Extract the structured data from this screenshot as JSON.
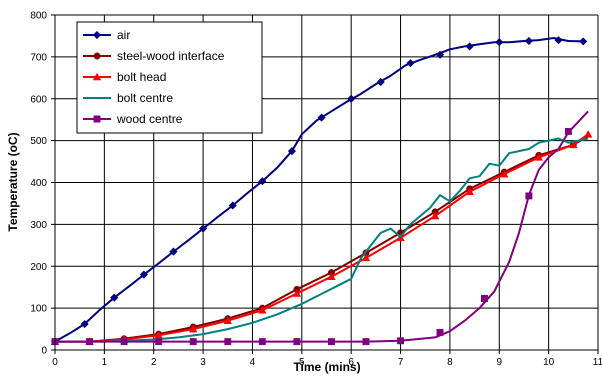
{
  "chart_data": {
    "type": "line",
    "title": "",
    "xlabel": "Time (mins)",
    "ylabel": "Temperature (oC)",
    "xlim": [
      0,
      11
    ],
    "ylim": [
      0,
      800
    ],
    "x_ticks": [
      0,
      1,
      2,
      3,
      4,
      5,
      6,
      7,
      8,
      9,
      10,
      11
    ],
    "x_tick_labels": [
      "0",
      "1",
      "2",
      "3",
      "4",
      "5",
      "6",
      "7",
      "8",
      "9",
      "10",
      "11"
    ],
    "y_ticks": [
      0,
      100,
      200,
      300,
      400,
      500,
      600,
      700,
      800
    ],
    "y_tick_labels": [
      "0",
      "100",
      "200",
      "300",
      "400",
      "500",
      "600",
      "700",
      "800"
    ],
    "grid": true,
    "legend_position": "top-left",
    "series": [
      {
        "name": "air",
        "color": "#000080",
        "marker": "diamond",
        "x": [
          0,
          0.3,
          0.6,
          0.9,
          1.2,
          1.5,
          1.8,
          2.1,
          2.4,
          2.7,
          3.0,
          3.3,
          3.6,
          3.9,
          4.2,
          4.5,
          4.8,
          5.0,
          5.3,
          5.6,
          5.9,
          6.2,
          6.5,
          6.8,
          7.1,
          7.4,
          7.7,
          8.0,
          8.3,
          8.6,
          8.9,
          9.2,
          9.5,
          9.8,
          10.1,
          10.4,
          10.7
        ],
        "y": [
          20,
          40,
          62,
          95,
          125,
          152,
          180,
          207,
          235,
          262,
          290,
          318,
          345,
          375,
          403,
          435,
          475,
          515,
          548,
          570,
          592,
          612,
          635,
          655,
          680,
          693,
          705,
          718,
          725,
          730,
          735,
          735,
          738,
          740,
          745,
          738,
          737
        ],
        "markers_x": [
          0,
          0.6,
          1.2,
          1.8,
          2.4,
          3.0,
          3.6,
          4.2,
          4.8,
          5.4,
          6.0,
          6.6,
          7.2,
          7.8,
          8.4,
          9.0,
          9.6,
          10.2,
          10.7
        ],
        "markers_y": [
          20,
          62,
          125,
          180,
          235,
          290,
          345,
          403,
          475,
          555,
          600,
          640,
          685,
          705,
          725,
          735,
          738,
          740,
          737
        ]
      },
      {
        "name": "steel-wood interface",
        "color": "#800000",
        "marker": "circle",
        "x": [
          0,
          0.7,
          1.4,
          2.1,
          2.8,
          3.5,
          4.2,
          4.9,
          5.6,
          6.3,
          7.0,
          7.7,
          8.4,
          9.1,
          9.8,
          10.5,
          10.8
        ],
        "y": [
          20,
          20,
          27,
          38,
          55,
          75,
          100,
          145,
          185,
          232,
          280,
          330,
          385,
          425,
          465,
          490,
          510
        ],
        "markers_x": [
          0,
          0.7,
          1.4,
          2.1,
          2.8,
          3.5,
          4.2,
          4.9,
          5.6,
          6.3,
          7.0,
          7.7,
          8.4,
          9.1,
          9.8,
          10.5
        ],
        "markers_y": [
          20,
          20,
          27,
          38,
          55,
          75,
          100,
          145,
          185,
          232,
          280,
          330,
          385,
          425,
          465,
          490
        ]
      },
      {
        "name": "bolt head",
        "color": "#ff0000",
        "marker": "triangle",
        "x": [
          0,
          0.7,
          1.4,
          2.1,
          2.8,
          3.5,
          4.2,
          4.9,
          5.6,
          6.3,
          7.0,
          7.7,
          8.4,
          9.1,
          9.8,
          10.5,
          10.8
        ],
        "y": [
          20,
          20,
          25,
          35,
          50,
          70,
          95,
          135,
          175,
          220,
          268,
          320,
          378,
          420,
          460,
          490,
          515
        ],
        "markers_x": [
          0,
          0.7,
          1.4,
          2.1,
          2.8,
          3.5,
          4.2,
          4.9,
          5.6,
          6.3,
          7.0,
          7.7,
          8.4,
          9.1,
          9.8,
          10.5,
          10.8
        ],
        "markers_y": [
          20,
          20,
          25,
          35,
          50,
          70,
          95,
          135,
          175,
          220,
          268,
          320,
          378,
          420,
          460,
          490,
          515
        ]
      },
      {
        "name": "bolt centre",
        "color": "#008080",
        "marker": "none",
        "x": [
          0,
          1.0,
          2.0,
          2.5,
          3.0,
          3.5,
          4.0,
          4.5,
          5.0,
          5.5,
          6.0,
          6.2,
          6.4,
          6.6,
          6.8,
          7.0,
          7.2,
          7.4,
          7.6,
          7.8,
          8.0,
          8.2,
          8.4,
          8.6,
          8.8,
          9.0,
          9.2,
          9.4,
          9.6,
          9.8,
          10.0,
          10.2,
          10.4,
          10.6,
          10.8
        ],
        "y": [
          20,
          20,
          25,
          30,
          38,
          50,
          65,
          85,
          110,
          140,
          170,
          220,
          250,
          280,
          290,
          270,
          300,
          320,
          340,
          370,
          355,
          380,
          410,
          415,
          445,
          440,
          470,
          475,
          480,
          495,
          500,
          505,
          495,
          500,
          505
        ]
      },
      {
        "name": "wood centre",
        "color": "#800080",
        "marker": "square",
        "x": [
          0,
          0.7,
          1.4,
          2.1,
          2.8,
          3.5,
          4.2,
          4.9,
          5.6,
          6.3,
          7.0,
          7.7,
          8.0,
          8.3,
          8.6,
          8.9,
          9.2,
          9.4,
          9.6,
          9.8,
          10.0,
          10.2,
          10.4,
          10.6,
          10.8
        ],
        "y": [
          20,
          20,
          20,
          20,
          20,
          20,
          20,
          20,
          20,
          20,
          22,
          30,
          45,
          70,
          100,
          140,
          210,
          280,
          370,
          430,
          460,
          480,
          520,
          545,
          570
        ],
        "markers_x": [
          0,
          0.7,
          1.4,
          2.1,
          2.8,
          3.5,
          4.2,
          4.9,
          5.6,
          6.3,
          7.0,
          7.8,
          8.7,
          9.6,
          10.4
        ],
        "markers_y": [
          20,
          20,
          20,
          20,
          20,
          20,
          20,
          20,
          20,
          20,
          22,
          42,
          123,
          368,
          522
        ]
      }
    ]
  }
}
